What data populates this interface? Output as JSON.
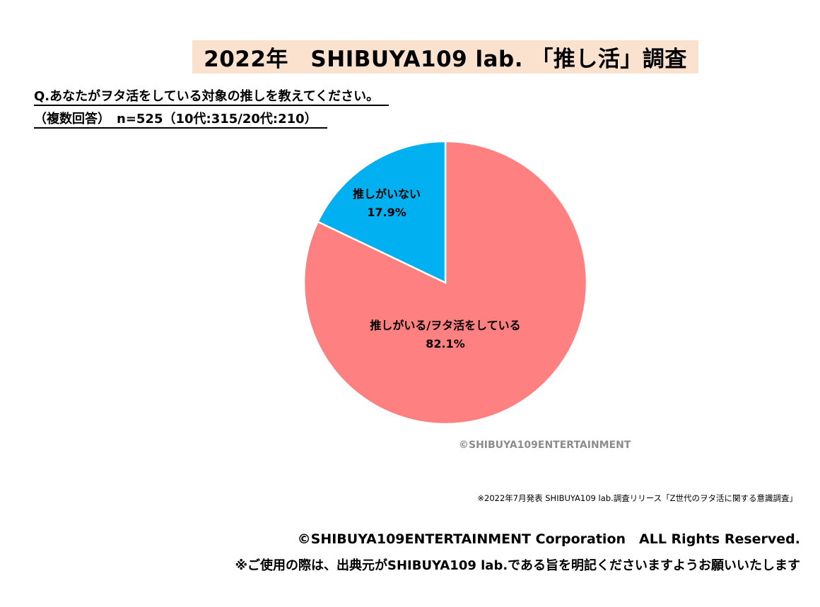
{
  "header": {
    "title": "2022年　SHIBUYA109 lab. 「推し活」調査"
  },
  "question": {
    "line1": "Q.あなたがヲタ活をしている対象の推しを教えてください。",
    "line2": "（複数回答）　n=525（10代:315/20代:210）"
  },
  "chart_data": {
    "type": "pie",
    "slices": [
      {
        "label": "推しがいる/ヲタ活をしている",
        "value": 82.1,
        "value_label": "82.1%",
        "color": "#ff8080"
      },
      {
        "label": "推しがいない",
        "value": 17.9,
        "value_label": "17.9%",
        "color": "#00b0f0"
      }
    ],
    "start": "12 o'clock",
    "direction": "clockwise"
  },
  "watermark": "©SHIBUYA109ENTERTAINMENT",
  "footer": {
    "source": "※2022年7月発表 SHIBUYA109 lab.調査リリース「Z世代のヲタ活に関する意識調査」",
    "copyright": "©SHIBUYA109ENTERTAINMENT Corporation　ALL Rights Reserved.",
    "notice": "※ご使用の際は、出典元がSHIBUYA109 lab.である旨を明記くださいますようお願いいたします"
  }
}
